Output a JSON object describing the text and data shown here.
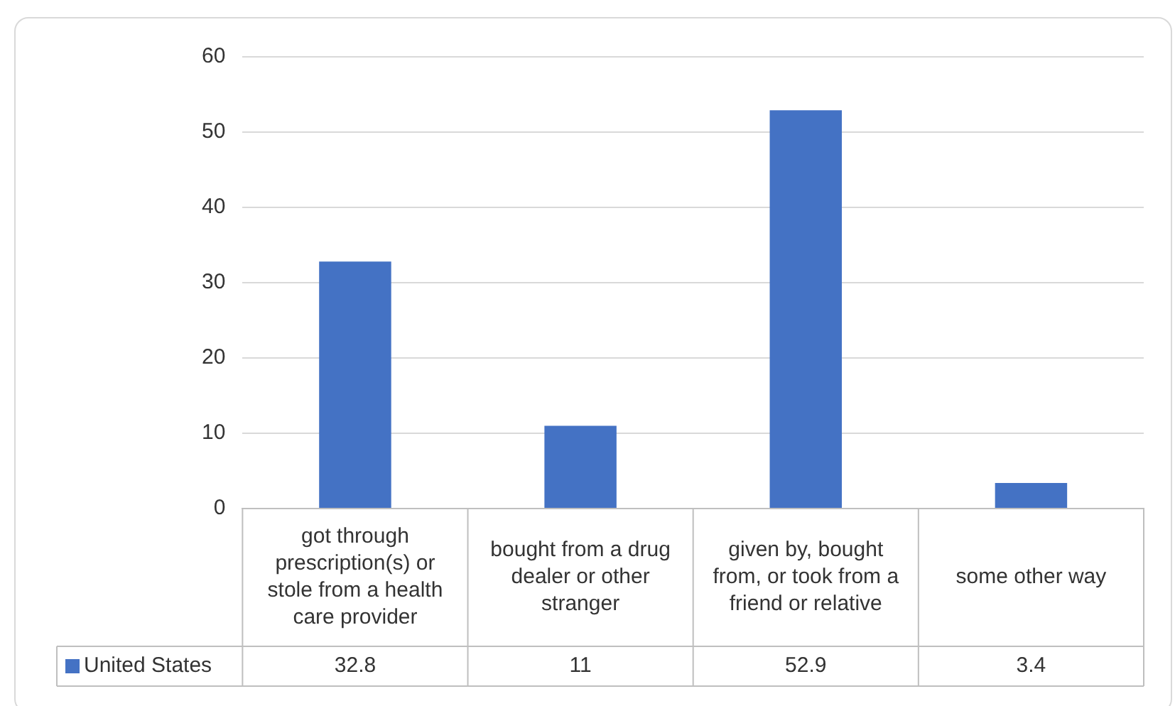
{
  "chart_data": {
    "type": "bar",
    "categories": [
      "got through prescription(s) or stole from a health care provider",
      "bought from a drug dealer or other stranger",
      "given by, bought from, or took from a friend or relative",
      "some other way"
    ],
    "series": [
      {
        "name": "United States",
        "color": "#4472c4",
        "values": [
          32.8,
          11,
          52.9,
          3.4
        ]
      }
    ],
    "ylim": [
      0,
      60
    ],
    "yticks": [
      0,
      10,
      20,
      30,
      40,
      50,
      60
    ],
    "grid": "y",
    "legend": "bottom",
    "data_labels": true
  }
}
